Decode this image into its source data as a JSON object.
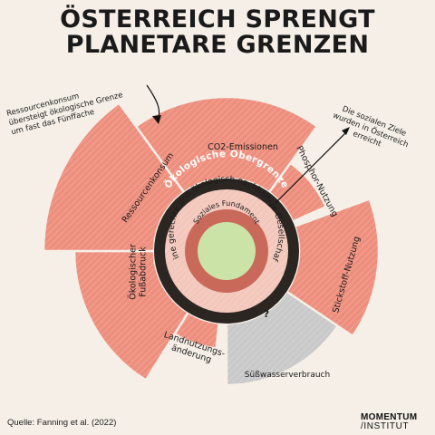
{
  "title_line1": "ÖSTERREICH SPRENGT",
  "title_line2": "PLANETARE GRENZEN",
  "source": "Quelle: Fanning et al. (2022)",
  "logo_line1": "MOMENTUM",
  "logo_line2": "/INSTITUT",
  "colors": {
    "background": "#f5efe7",
    "overshoot": "#ee8f7e",
    "within": "#c9c9c9",
    "ceiling_ring": "#2b2622",
    "social_ring": "#c9695a",
    "safe_space": "#f3c7bb",
    "core": "#cbe3a6",
    "text": "#1a1a1a"
  },
  "chart_data": {
    "type": "doughnut-radial",
    "title": "ÖSTERREICH SPRENGT PLANETARE GRENZEN",
    "ring_labels": {
      "ecological_ceiling": "Ökologische Obergrenze",
      "safe_space": "Eine gerechte und ökologisch nachhaltige Gesellschaft",
      "social_foundation": "Soziales Fundament"
    },
    "indicators": [
      {
        "name": "CO2-Emissionen",
        "overshoot": true
      },
      {
        "name": "Phosphor-Nutzung",
        "overshoot": true
      },
      {
        "name": "Stickstoff-Nutzung",
        "overshoot": true
      },
      {
        "name": "Süßwasserverbrauch",
        "overshoot": false,
        "unknown": true,
        "marker": "?"
      },
      {
        "name": "Landnutzungs-\nänderung",
        "overshoot": true
      },
      {
        "name": "Ökologischer\nFußabdruck",
        "overshoot": true
      },
      {
        "name": "Ressourcenkonsum",
        "overshoot": true
      }
    ],
    "annotations": [
      {
        "text": "Ressourcenkonsum\nübersteigt ökologische Grenze\num fast das Fünffache",
        "target": "Ressourcenkonsum"
      },
      {
        "text": "Die sozialen Ziele\nwurden in Österreich\nerreicht",
        "target": "Soziales Fundament"
      }
    ]
  }
}
